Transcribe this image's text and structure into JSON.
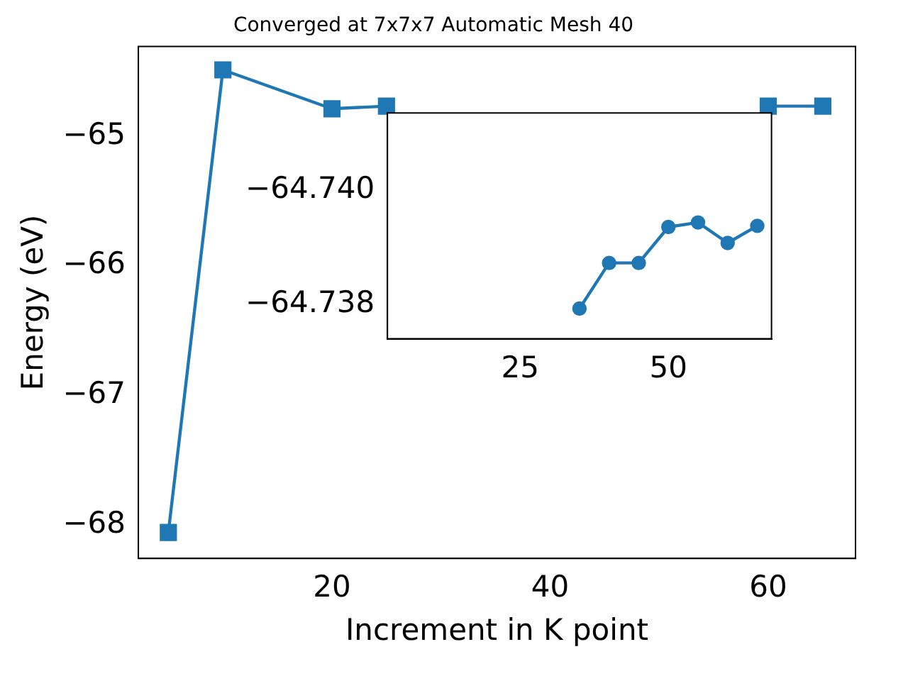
{
  "chart_data": [
    {
      "type": "line",
      "title": "Converged at 7x7x7 Automatic Mesh 40",
      "xlabel": "Increment in K point",
      "ylabel": "Energy (eV)",
      "x": [
        5,
        10,
        20,
        25,
        30,
        35,
        40,
        45,
        50,
        55,
        60,
        65
      ],
      "series": [
        {
          "color": "#1f77b4",
          "values": [
            -68.06,
            -64.49,
            -64.79,
            -64.77,
            null,
            null,
            null,
            null,
            null,
            null,
            -64.77,
            -64.77
          ]
        }
      ],
      "xlim": [
        2.25,
        68
      ],
      "xticks": [
        20,
        40,
        60
      ],
      "ylim": [
        -68.26,
        -64.31
      ],
      "yticks": [
        {
          "value": -68,
          "label": "−68"
        },
        {
          "value": -67,
          "label": "−67"
        },
        {
          "value": -66,
          "label": "−66"
        },
        {
          "value": -65,
          "label": "−65"
        }
      ],
      "marker": "square",
      "line_style": "solid",
      "grid": false,
      "legend": false
    },
    {
      "type": "line",
      "x": [
        35,
        40,
        45,
        50,
        55,
        60,
        65
      ],
      "series": [
        {
          "color": "#1f77b4",
          "values": [
            -64.73793,
            -64.73873,
            -64.73873,
            -64.73936,
            -64.73944,
            -64.73908,
            -64.73938
          ]
        }
      ],
      "xlim": [
        2.6,
        67.4
      ],
      "xticks": [
        25,
        50
      ],
      "ylim": [
        -64.7374,
        -64.74136
      ],
      "yticks": [
        {
          "value": -64.74,
          "label": "−64.740"
        },
        {
          "value": -64.738,
          "label": "−64.738"
        }
      ],
      "marker": "circle",
      "line_style": "solid",
      "grid": false,
      "legend": false
    }
  ]
}
